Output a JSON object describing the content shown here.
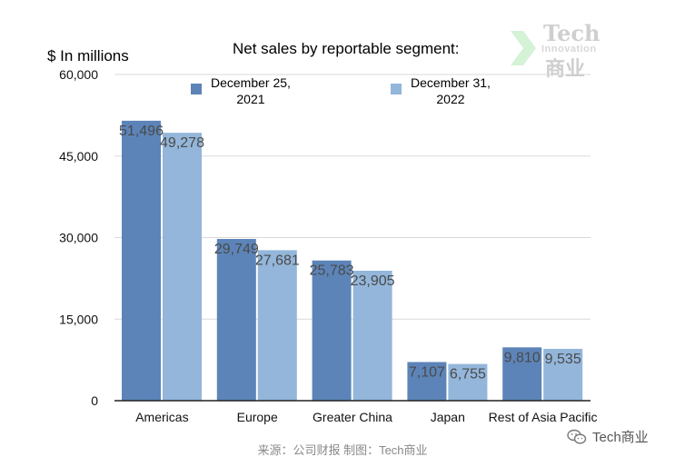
{
  "header": {
    "ylabel": "$ In millions",
    "title": "Net sales by reportable segment:"
  },
  "legend": {
    "items": [
      {
        "line1": "December 25,",
        "line2": "2021"
      },
      {
        "line1": "December 31,",
        "line2": "2022"
      }
    ]
  },
  "watermark": {
    "line1": "Tech",
    "line2": "Innovation",
    "line3": "商业"
  },
  "source": "来源：公司财报 制图：Tech商业",
  "wechat_label": "Tech商业",
  "colors": {
    "series1": "#5c84b8",
    "series2": "#93b6da",
    "grid": "#d9d9d9",
    "axis": "#222222",
    "label": "#4a4a4a"
  },
  "chart_data": {
    "type": "bar",
    "title": "Net sales by reportable segment:",
    "ylabel": "$ In millions",
    "xlabel": "",
    "categories": [
      "Americas",
      "Europe",
      "Greater China",
      "Japan",
      "Rest of Asia Pacific"
    ],
    "series": [
      {
        "name": "December 25, 2021",
        "values": [
          51496,
          29749,
          25783,
          7107,
          9810
        ],
        "labels": [
          "51,496",
          "29,749",
          "25,783",
          "7,107",
          "9,810"
        ]
      },
      {
        "name": "December 31, 2022",
        "values": [
          49278,
          27681,
          23905,
          6755,
          9535
        ],
        "labels": [
          "49,278",
          "27,681",
          "23,905",
          "6,755",
          "9,535"
        ]
      }
    ],
    "ylim": [
      0,
      60000
    ],
    "yticks": [
      0,
      15000,
      30000,
      45000,
      60000
    ],
    "ytick_labels": [
      "0",
      "15,000",
      "30,000",
      "45,000",
      "60,000"
    ],
    "grid": true,
    "legend_position": "top"
  }
}
